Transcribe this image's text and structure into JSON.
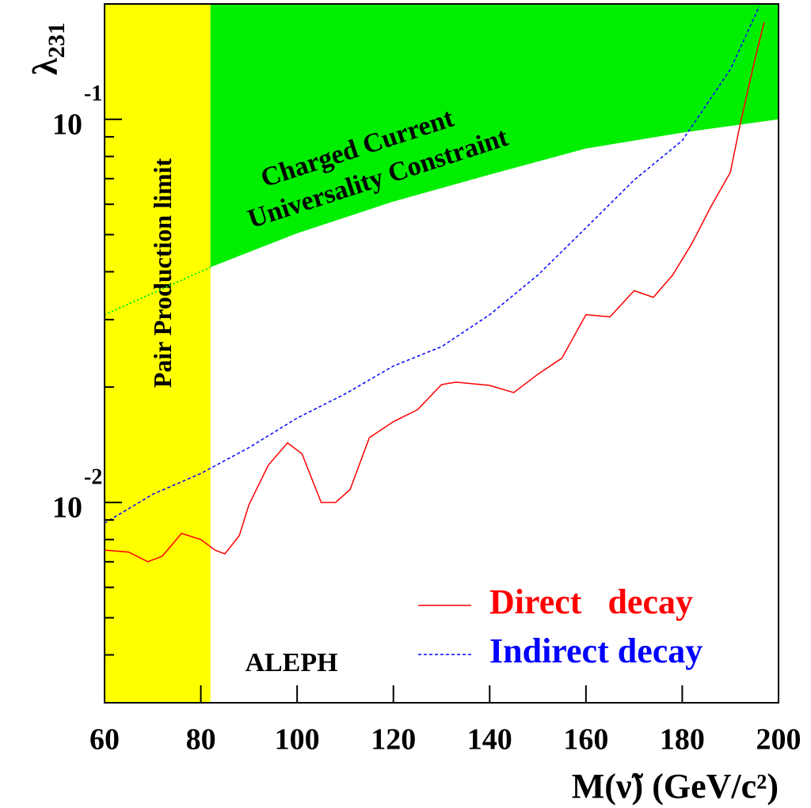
{
  "chart_data": {
    "type": "line",
    "x_label": "M(ν̃) (GeV/c²)",
    "y_label": "λ",
    "y_label_sub": "231",
    "xlim": [
      60,
      200
    ],
    "xticks": [
      60,
      80,
      100,
      120,
      140,
      160,
      180,
      200
    ],
    "ylim": [
      0.003,
      0.2
    ],
    "log_y": true,
    "yticks": [
      {
        "value": 0.1,
        "label": "10",
        "exponent": "-1"
      },
      {
        "value": 0.01,
        "label": "10",
        "exponent": "-2"
      }
    ],
    "yminor": [
      0.004,
      0.005,
      0.006,
      0.007,
      0.008,
      0.009,
      0.02,
      0.03,
      0.04,
      0.05,
      0.06,
      0.07,
      0.08,
      0.09,
      0.2
    ],
    "band": {
      "name": "Pair Production limit",
      "color": "#ffff00",
      "xlim": [
        60,
        82
      ]
    },
    "constraint": {
      "label_lines": [
        "Charged Current",
        "Universality Constraint"
      ],
      "color": "#00ee00",
      "x": [
        82,
        100,
        120,
        140,
        160,
        180,
        200
      ],
      "values": [
        0.0411,
        0.0504,
        0.061,
        0.0717,
        0.0839,
        0.0923,
        0.1
      ],
      "extrapolation": {
        "x": [
          60,
          82
        ],
        "values": [
          0.0309,
          0.0411
        ]
      }
    },
    "annotation": "ALEPH",
    "series": [
      {
        "name": "Direct   decay",
        "color": "#ff0000",
        "dash": false,
        "x": [
          60,
          65,
          69,
          72,
          76,
          80,
          83,
          85,
          88,
          90,
          94,
          98,
          101,
          105,
          108,
          111,
          115,
          120,
          125,
          130,
          133,
          140,
          145,
          150,
          155,
          160,
          165,
          170,
          174,
          178,
          182,
          186,
          190,
          192,
          195,
          197
        ],
        "values": [
          0.00751,
          0.00742,
          0.007,
          0.00724,
          0.0083,
          0.008,
          0.0075,
          0.00734,
          0.0082,
          0.00986,
          0.0125,
          0.0143,
          0.0134,
          0.01,
          0.01,
          0.0108,
          0.01475,
          0.01625,
          0.01745,
          0.0203,
          0.0206,
          0.0202,
          0.01935,
          0.0216,
          0.0238,
          0.0309,
          0.0305,
          0.0357,
          0.0343,
          0.0392,
          0.0474,
          0.0593,
          0.0727,
          0.0967,
          0.1416,
          0.179
        ]
      },
      {
        "name": "Indirect decay",
        "color": "#0000ff",
        "dash": true,
        "x": [
          60,
          70,
          80,
          90,
          100,
          110,
          120,
          130,
          140,
          150,
          160,
          170,
          180,
          190,
          196
        ],
        "values": [
          0.00883,
          0.0105,
          0.0119,
          0.0139,
          0.0166,
          0.0192,
          0.0227,
          0.0255,
          0.0309,
          0.0392,
          0.0521,
          0.0694,
          0.088,
          0.135,
          0.197
        ]
      }
    ]
  }
}
